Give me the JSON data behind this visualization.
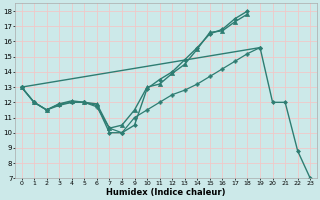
{
  "xlabel": "Humidex (Indice chaleur)",
  "bg_color": "#cce9e9",
  "grid_color": "#f0c8c8",
  "line_color": "#2e7d72",
  "xlim": [
    -0.5,
    23.5
  ],
  "ylim": [
    7,
    18.5
  ],
  "xtick_labels": [
    "0",
    "1",
    "2",
    "3",
    "4",
    "5",
    "6",
    "7",
    "8",
    "9",
    "10",
    "11",
    "12",
    "13",
    "14",
    "15",
    "16",
    "17",
    "18",
    "19",
    "20",
    "21",
    "22",
    "23"
  ],
  "xtick_vals": [
    0,
    1,
    2,
    3,
    4,
    5,
    6,
    7,
    8,
    9,
    10,
    11,
    12,
    13,
    14,
    15,
    16,
    17,
    18,
    19,
    20,
    21,
    22,
    23
  ],
  "ytick_labels": [
    "7",
    "8",
    "9",
    "10",
    "11",
    "12",
    "13",
    "14",
    "15",
    "16",
    "17",
    "18"
  ],
  "ytick_vals": [
    7,
    8,
    9,
    10,
    11,
    12,
    13,
    14,
    15,
    16,
    17,
    18
  ],
  "series": [
    {
      "x": [
        0,
        1,
        2,
        3,
        4,
        5,
        6,
        7,
        8,
        9,
        10,
        11,
        12,
        13,
        14,
        15,
        16,
        17,
        18
      ],
      "y": [
        13,
        12,
        11.5,
        11.8,
        12,
        12,
        11.8,
        10.0,
        10.0,
        10.5,
        12.9,
        13.5,
        14.0,
        14.8,
        15.6,
        16.5,
        16.8,
        17.5,
        18.0
      ],
      "marker": "D",
      "markersize": 2.0,
      "linewidth": 1.0
    },
    {
      "x": [
        0,
        1,
        2,
        3,
        4,
        5,
        6,
        7,
        8,
        9,
        10,
        11,
        12,
        13,
        14,
        15,
        16,
        17,
        18
      ],
      "y": [
        13,
        12,
        11.5,
        11.9,
        12.1,
        12.0,
        11.9,
        10.3,
        10.5,
        11.5,
        13.0,
        13.2,
        13.9,
        14.5,
        15.5,
        16.6,
        16.7,
        17.3,
        17.8
      ],
      "marker": "^",
      "markersize": 3.0,
      "linewidth": 1.0
    },
    {
      "x": [
        0,
        1,
        2,
        3,
        4,
        5,
        6,
        7,
        8,
        9,
        10,
        11,
        12,
        13,
        14,
        15,
        16,
        17,
        18,
        19,
        20,
        21,
        22,
        23
      ],
      "y": [
        13,
        12,
        11.5,
        11.9,
        12.0,
        12.0,
        11.7,
        10.3,
        10.0,
        11.0,
        11.5,
        12.0,
        12.5,
        12.8,
        13.2,
        13.7,
        14.2,
        14.7,
        15.2,
        15.6,
        null,
        null,
        null,
        null
      ],
      "marker": "P",
      "markersize": 2.5,
      "linewidth": 0.9
    },
    {
      "comment": "diagonal line: from 0,13 straight to 19,15.6 then drop to 21=12, 22=8.8, 23=7",
      "x": [
        0,
        19,
        20,
        21,
        22,
        23
      ],
      "y": [
        13,
        15.6,
        12.0,
        12.0,
        8.8,
        7.0
      ],
      "marker": "D",
      "markersize": 2.0,
      "linewidth": 1.0,
      "linestyle": "-"
    }
  ]
}
